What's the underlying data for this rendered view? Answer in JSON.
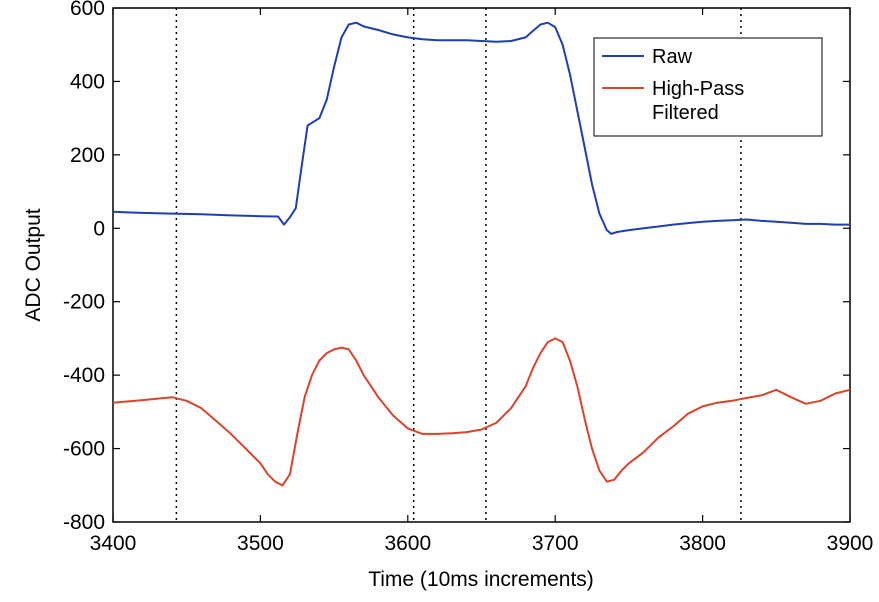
{
  "chart_data": {
    "type": "line",
    "title": "",
    "xlabel": "Time (10ms increments)",
    "ylabel": "ADC Output",
    "xlim": [
      3400,
      3900
    ],
    "ylim": [
      -800,
      600
    ],
    "x_ticks": [
      3400,
      3500,
      3600,
      3700,
      3800,
      3900
    ],
    "y_ticks": [
      -800,
      -600,
      -400,
      -200,
      0,
      200,
      400,
      600
    ],
    "grid": false,
    "legend_position": "top-right",
    "vertical_dotted_markers": [
      3443,
      3604,
      3653,
      3826
    ],
    "series": [
      {
        "name": "Raw",
        "color": "#1f3fb0",
        "x": [
          3400,
          3420,
          3440,
          3460,
          3480,
          3500,
          3512,
          3516,
          3520,
          3524,
          3528,
          3532,
          3536,
          3540,
          3545,
          3550,
          3555,
          3560,
          3565,
          3570,
          3580,
          3590,
          3600,
          3610,
          3620,
          3630,
          3640,
          3650,
          3660,
          3670,
          3680,
          3685,
          3690,
          3695,
          3700,
          3705,
          3710,
          3715,
          3720,
          3725,
          3730,
          3735,
          3738,
          3742,
          3750,
          3760,
          3770,
          3780,
          3790,
          3800,
          3810,
          3820,
          3830,
          3840,
          3850,
          3860,
          3870,
          3880,
          3890,
          3900
        ],
        "values": [
          45,
          42,
          40,
          38,
          35,
          33,
          32,
          10,
          30,
          55,
          170,
          280,
          290,
          300,
          350,
          440,
          520,
          555,
          560,
          550,
          540,
          528,
          520,
          515,
          512,
          512,
          512,
          510,
          508,
          510,
          520,
          538,
          555,
          560,
          548,
          500,
          420,
          320,
          220,
          120,
          40,
          -5,
          -15,
          -10,
          -5,
          0,
          5,
          10,
          14,
          18,
          20,
          22,
          24,
          20,
          18,
          15,
          12,
          12,
          10,
          10
        ]
      },
      {
        "name": "High-Pass\nFiltered",
        "color": "#d9442b",
        "x": [
          3400,
          3420,
          3440,
          3450,
          3460,
          3470,
          3480,
          3490,
          3500,
          3505,
          3510,
          3515,
          3520,
          3525,
          3530,
          3535,
          3540,
          3545,
          3550,
          3555,
          3560,
          3565,
          3570,
          3580,
          3590,
          3600,
          3610,
          3620,
          3630,
          3640,
          3650,
          3660,
          3670,
          3680,
          3685,
          3690,
          3695,
          3700,
          3705,
          3710,
          3715,
          3720,
          3725,
          3730,
          3735,
          3740,
          3745,
          3750,
          3760,
          3770,
          3780,
          3790,
          3800,
          3810,
          3820,
          3830,
          3840,
          3850,
          3860,
          3870,
          3880,
          3890,
          3900
        ],
        "values": [
          -475,
          -468,
          -460,
          -470,
          -490,
          -525,
          -560,
          -600,
          -640,
          -670,
          -690,
          -700,
          -670,
          -560,
          -460,
          -400,
          -360,
          -340,
          -330,
          -325,
          -330,
          -360,
          -400,
          -460,
          -510,
          -545,
          -560,
          -560,
          -558,
          -555,
          -548,
          -530,
          -490,
          -430,
          -380,
          -340,
          -310,
          -300,
          -310,
          -360,
          -430,
          -520,
          -600,
          -660,
          -690,
          -685,
          -660,
          -640,
          -610,
          -570,
          -540,
          -505,
          -485,
          -475,
          -470,
          -462,
          -455,
          -440,
          -460,
          -478,
          -470,
          -450,
          -440
        ]
      }
    ]
  }
}
